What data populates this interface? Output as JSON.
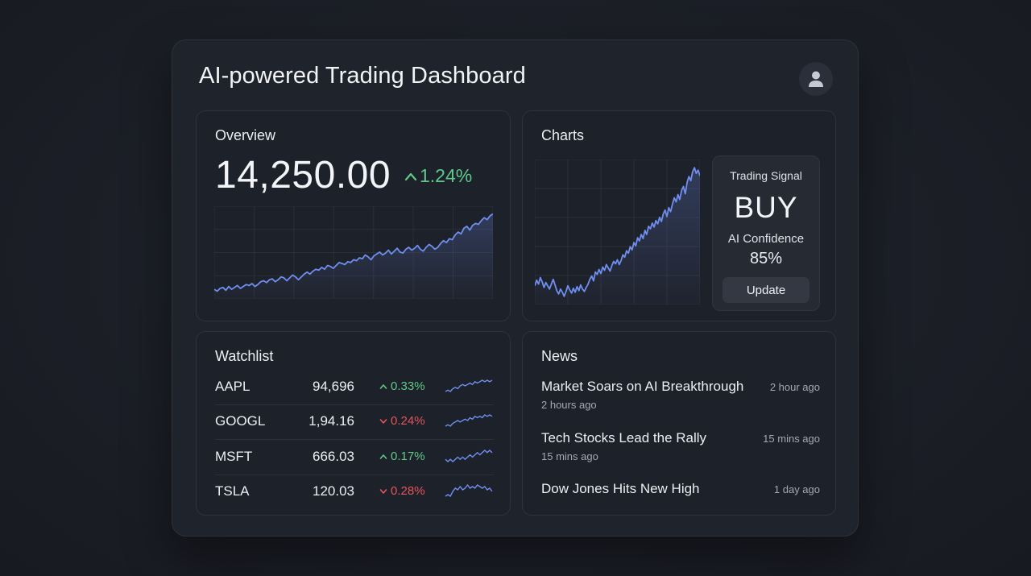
{
  "app": {
    "title": "AI-powered Trading Dashboard"
  },
  "user": {
    "icon": "user-icon"
  },
  "overview": {
    "title": "Overview",
    "value": "14,250.00",
    "change": "1.24%",
    "change_direction": "up",
    "chart_series": [
      52,
      50,
      53,
      54,
      51,
      55,
      52,
      54,
      56,
      53,
      55,
      57,
      56,
      58,
      55,
      57,
      60,
      61,
      59,
      62,
      63,
      60,
      62,
      65,
      64,
      61,
      64,
      67,
      65,
      62,
      65,
      68,
      70,
      68,
      71,
      73,
      72,
      75,
      73,
      77,
      76,
      74,
      77,
      80,
      79,
      78,
      81,
      80,
      83,
      82,
      85,
      84,
      88,
      86,
      83,
      87,
      89,
      91,
      88,
      90,
      93,
      89,
      92,
      95,
      91,
      90,
      94,
      96,
      93,
      95,
      98,
      94,
      92,
      96,
      99,
      97,
      94,
      96,
      100,
      103,
      101,
      105,
      104,
      109,
      112,
      110,
      116,
      118,
      114,
      119,
      121,
      120,
      124,
      127,
      125,
      129,
      131
    ]
  },
  "charts": {
    "title": "Charts",
    "chart_series": [
      78,
      85,
      80,
      88,
      83,
      76,
      82,
      78,
      74,
      80,
      86,
      79,
      72,
      68,
      74,
      70,
      65,
      71,
      78,
      73,
      69,
      75,
      70,
      77,
      72,
      79,
      74,
      71,
      76,
      80,
      86,
      90,
      84,
      95,
      92,
      98,
      93,
      101,
      97,
      104,
      100,
      96,
      103,
      108,
      105,
      110,
      104,
      109,
      116,
      113,
      121,
      118,
      126,
      122,
      131,
      127,
      137,
      133,
      141,
      136,
      146,
      141,
      151,
      148,
      155,
      150,
      158,
      154,
      162,
      157,
      166,
      171,
      163,
      174,
      169,
      178,
      186,
      181,
      190,
      184,
      195,
      200,
      191,
      205,
      212,
      207,
      218,
      223,
      216,
      220,
      213
    ]
  },
  "signal": {
    "label": "Trading Signal",
    "value": "BUY",
    "confidence_label": "AI Confidence",
    "confidence": "85%",
    "button": "Update"
  },
  "watchlist": {
    "title": "Watchlist",
    "rows": [
      {
        "symbol": "AAPL",
        "price": "94,696",
        "change": "0.33%",
        "direction": "up",
        "spark": [
          4,
          5,
          4,
          6,
          7,
          6,
          8,
          9,
          8,
          9,
          10,
          9,
          11,
          10,
          11,
          12,
          11,
          12,
          11,
          12
        ]
      },
      {
        "symbol": "GOOGL",
        "price": "1,94.16",
        "change": "0.24%",
        "direction": "down",
        "spark": [
          4,
          5,
          4,
          6,
          7,
          8,
          7,
          8,
          9,
          8,
          10,
          9,
          11,
          10,
          11,
          10,
          12,
          11,
          12,
          11
        ]
      },
      {
        "symbol": "MSFT",
        "price": "666.03",
        "change": "0.17%",
        "direction": "up",
        "spark": [
          6,
          5,
          6,
          5,
          6,
          7,
          6,
          7,
          6,
          7,
          8,
          7,
          8,
          9,
          8,
          9,
          10,
          9,
          10,
          9
        ]
      },
      {
        "symbol": "TSLA",
        "price": "120.03",
        "change": "0.28%",
        "direction": "down",
        "spark": [
          5,
          6,
          5,
          8,
          10,
          9,
          11,
          9,
          10,
          12,
          10,
          11,
          10,
          12,
          11,
          10,
          11,
          9,
          10,
          8
        ]
      }
    ]
  },
  "news": {
    "title": "News",
    "items": [
      {
        "headline": "Market Soars on AI Breakthrough",
        "time": "2 hour ago",
        "subtime": "2 hours ago"
      },
      {
        "headline": "Tech Stocks Lead the Rally",
        "time": "15 mins ago",
        "subtime": "15 mins ago"
      },
      {
        "headline": "Dow Jones Hits New High",
        "time": "1 day ago",
        "subtime": ""
      }
    ]
  },
  "colors": {
    "accent_line": "#6f8ef0",
    "up": "#5fc98a",
    "down": "#e5555d"
  }
}
